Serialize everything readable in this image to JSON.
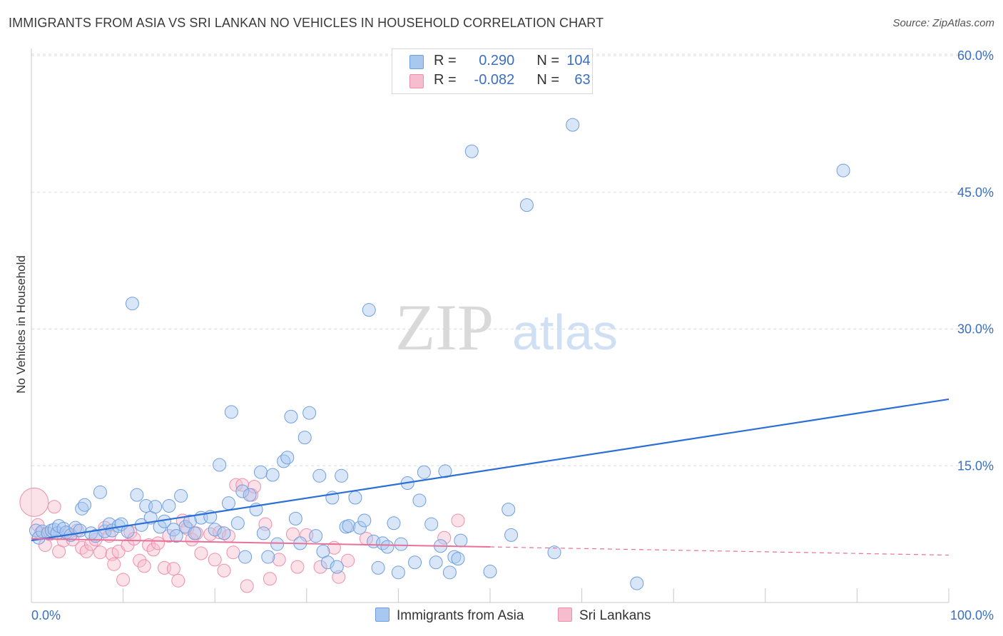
{
  "title": "IMMIGRANTS FROM ASIA VS SRI LANKAN NO VEHICLES IN HOUSEHOLD CORRELATION CHART",
  "source": "Source: ZipAtlas.com",
  "watermark": {
    "zip": "ZIP",
    "atlas": "atlas"
  },
  "legend": {
    "r_label": "R =",
    "n_label": "N =",
    "series": [
      {
        "name": "Immigrants from Asia",
        "r": "0.290",
        "n": "104",
        "color": "#a9c8f0",
        "edge": "#6f9ee0"
      },
      {
        "name": "Sri Lankans",
        "r": "-0.082",
        "n": "63",
        "color": "#f7bccd",
        "edge": "#ee8fac"
      }
    ]
  },
  "colors": {
    "blue_line": "#2b6fd6",
    "pink_line": "#e8709a",
    "axis_text": "#3a6fc4",
    "grid": "#dddddd"
  },
  "chart_data": {
    "type": "scatter",
    "title": "IMMIGRANTS FROM ASIA VS SRI LANKAN NO VEHICLES IN HOUSEHOLD CORRELATION CHART",
    "xlabel": "",
    "ylabel": "No Vehicles in Household",
    "xlim": [
      0,
      100
    ],
    "ylim": [
      0,
      63
    ],
    "x_tick_labels": [
      "0.0%",
      "100.0%"
    ],
    "y_ticks": [
      15,
      30,
      45,
      60
    ],
    "y_tick_labels": [
      "15.0%",
      "30.0%",
      "45.0%",
      "60.0%"
    ],
    "grid": true,
    "legend_position": "top-center",
    "series": [
      {
        "name": "Immigrants from Asia",
        "trend": {
          "x": [
            0,
            100
          ],
          "y": [
            6.8,
            22.3
          ]
        },
        "points": [
          [
            0.5,
            7.9
          ],
          [
            0.8,
            7.1
          ],
          [
            1.2,
            7.8
          ],
          [
            1.8,
            7.6
          ],
          [
            2.2,
            7.9
          ],
          [
            2.5,
            8.0
          ],
          [
            2.8,
            7.6
          ],
          [
            3.0,
            8.4
          ],
          [
            3.5,
            8.1
          ],
          [
            3.8,
            7.7
          ],
          [
            4.3,
            7.4
          ],
          [
            4.8,
            8.2
          ],
          [
            5.3,
            7.9
          ],
          [
            5.5,
            10.3
          ],
          [
            5.8,
            10.7
          ],
          [
            6.5,
            7.6
          ],
          [
            7.0,
            7.3
          ],
          [
            7.5,
            12.1
          ],
          [
            8.0,
            7.8
          ],
          [
            8.5,
            8.6
          ],
          [
            8.8,
            7.9
          ],
          [
            9.5,
            8.4
          ],
          [
            9.8,
            8.6
          ],
          [
            10.5,
            7.8
          ],
          [
            11.0,
            32.8
          ],
          [
            11.5,
            11.8
          ],
          [
            12.0,
            8.5
          ],
          [
            12.5,
            10.6
          ],
          [
            13.0,
            9.3
          ],
          [
            13.5,
            10.5
          ],
          [
            14.0,
            8.3
          ],
          [
            14.5,
            8.9
          ],
          [
            15.0,
            10.6
          ],
          [
            15.5,
            8.0
          ],
          [
            15.8,
            7.3
          ],
          [
            16.3,
            11.7
          ],
          [
            16.8,
            8.3
          ],
          [
            17.3,
            8.9
          ],
          [
            17.8,
            7.6
          ],
          [
            18.5,
            9.3
          ],
          [
            19.5,
            9.4
          ],
          [
            20.0,
            8.0
          ],
          [
            20.5,
            15.1
          ],
          [
            21.0,
            7.6
          ],
          [
            21.5,
            10.9
          ],
          [
            21.8,
            20.9
          ],
          [
            22.5,
            8.7
          ],
          [
            23.0,
            12.2
          ],
          [
            23.3,
            5.0
          ],
          [
            23.8,
            11.8
          ],
          [
            24.5,
            10.2
          ],
          [
            25.0,
            14.3
          ],
          [
            25.3,
            7.6
          ],
          [
            25.8,
            5.0
          ],
          [
            26.3,
            14.0
          ],
          [
            26.8,
            6.4
          ],
          [
            27.5,
            15.5
          ],
          [
            27.9,
            15.9
          ],
          [
            28.3,
            20.4
          ],
          [
            28.8,
            9.2
          ],
          [
            29.3,
            6.5
          ],
          [
            29.8,
            18.1
          ],
          [
            30.3,
            20.8
          ],
          [
            31.0,
            7.3
          ],
          [
            31.4,
            13.9
          ],
          [
            31.8,
            5.6
          ],
          [
            32.3,
            4.4
          ],
          [
            32.8,
            11.5
          ],
          [
            33.3,
            3.9
          ],
          [
            33.8,
            13.9
          ],
          [
            34.3,
            8.3
          ],
          [
            34.6,
            8.4
          ],
          [
            35.3,
            11.5
          ],
          [
            35.8,
            8.2
          ],
          [
            36.3,
            9.0
          ],
          [
            36.8,
            32.1
          ],
          [
            37.3,
            6.7
          ],
          [
            37.8,
            3.8
          ],
          [
            38.3,
            6.5
          ],
          [
            38.8,
            6.1
          ],
          [
            39.5,
            8.7
          ],
          [
            40.0,
            3.3
          ],
          [
            40.3,
            6.4
          ],
          [
            41.0,
            13.1
          ],
          [
            41.8,
            4.4
          ],
          [
            42.3,
            11.2
          ],
          [
            42.8,
            14.3
          ],
          [
            43.6,
            8.6
          ],
          [
            44.1,
            4.4
          ],
          [
            44.6,
            6.2
          ],
          [
            45.1,
            14.4
          ],
          [
            45.6,
            3.3
          ],
          [
            46.1,
            5.0
          ],
          [
            46.5,
            4.8
          ],
          [
            46.8,
            6.8
          ],
          [
            48.0,
            49.5
          ],
          [
            50.0,
            3.4
          ],
          [
            52.0,
            10.2
          ],
          [
            52.3,
            7.4
          ],
          [
            54.0,
            43.6
          ],
          [
            57.0,
            5.5
          ],
          [
            59.0,
            52.4
          ],
          [
            66.0,
            2.1
          ],
          [
            88.5,
            47.4
          ]
        ]
      },
      {
        "name": "Sri Lankans",
        "trend": {
          "x": [
            0,
            50
          ],
          "y": [
            7.0,
            6.1
          ]
        },
        "trend_dashed": {
          "x": [
            50,
            100
          ],
          "y": [
            6.1,
            5.2
          ]
        },
        "points": [
          [
            0.3,
            11.0
          ],
          [
            0.7,
            8.5
          ],
          [
            1.0,
            7.6
          ],
          [
            1.5,
            6.3
          ],
          [
            2.0,
            7.5
          ],
          [
            2.5,
            10.5
          ],
          [
            3.0,
            5.6
          ],
          [
            3.5,
            6.8
          ],
          [
            4.0,
            7.6
          ],
          [
            4.5,
            6.9
          ],
          [
            5.0,
            7.9
          ],
          [
            5.5,
            6.0
          ],
          [
            6.0,
            5.6
          ],
          [
            6.5,
            6.4
          ],
          [
            7.0,
            6.9
          ],
          [
            7.5,
            5.5
          ],
          [
            8.0,
            8.2
          ],
          [
            8.5,
            7.3
          ],
          [
            8.8,
            5.3
          ],
          [
            9.0,
            4.2
          ],
          [
            9.5,
            5.6
          ],
          [
            10.0,
            2.5
          ],
          [
            10.5,
            6.3
          ],
          [
            10.8,
            7.7
          ],
          [
            11.2,
            7.0
          ],
          [
            11.8,
            4.6
          ],
          [
            12.3,
            4.0
          ],
          [
            12.8,
            6.3
          ],
          [
            13.3,
            5.8
          ],
          [
            13.8,
            6.5
          ],
          [
            14.5,
            3.8
          ],
          [
            15.0,
            7.3
          ],
          [
            15.5,
            3.7
          ],
          [
            16.0,
            2.4
          ],
          [
            16.5,
            9.0
          ],
          [
            17.0,
            8.1
          ],
          [
            17.5,
            6.9
          ],
          [
            18.0,
            7.6
          ],
          [
            18.5,
            5.4
          ],
          [
            19.5,
            7.5
          ],
          [
            20.0,
            4.7
          ],
          [
            20.5,
            7.7
          ],
          [
            21.0,
            3.5
          ],
          [
            21.5,
            7.3
          ],
          [
            22.0,
            5.5
          ],
          [
            22.3,
            12.9
          ],
          [
            23.0,
            12.9
          ],
          [
            23.5,
            1.8
          ],
          [
            24.0,
            11.8
          ],
          [
            24.3,
            12.7
          ],
          [
            25.5,
            8.6
          ],
          [
            26.0,
            2.6
          ],
          [
            27.0,
            4.7
          ],
          [
            28.5,
            7.5
          ],
          [
            29.0,
            3.9
          ],
          [
            30.0,
            7.4
          ],
          [
            31.5,
            3.9
          ],
          [
            33.0,
            6.0
          ],
          [
            33.5,
            2.8
          ],
          [
            34.5,
            4.6
          ],
          [
            36.5,
            7.0
          ],
          [
            45.0,
            7.1
          ],
          [
            46.5,
            9.0
          ]
        ]
      }
    ]
  }
}
